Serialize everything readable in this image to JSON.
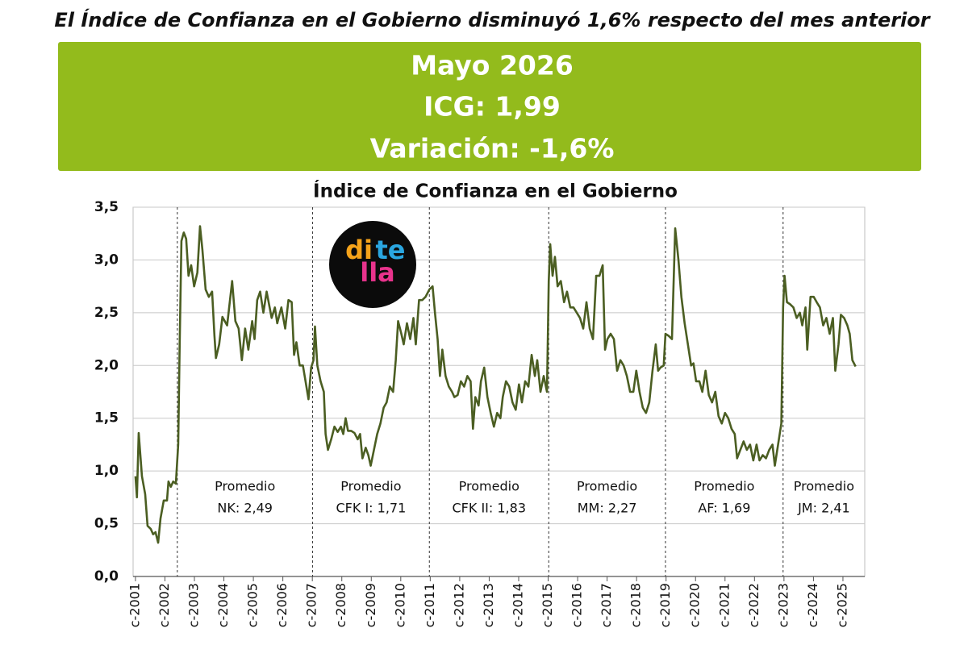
{
  "headline": "El Índice de Confianza en el Gobierno disminuyó 1,6% respecto del mes anterior",
  "banner": [
    "Mayo 2026",
    "ICG: 1,99",
    "Variación: -1,6%"
  ],
  "logo": [
    "di",
    "te",
    "lla"
  ],
  "chart_data": {
    "type": "line",
    "title": "Índice de Confianza en el Gobierno",
    "color": "#4b5e22",
    "grid": true,
    "xlim": [
      2000.92,
      2025.74
    ],
    "ylim": [
      0,
      3.5
    ],
    "yticks": [
      {
        "value": 0,
        "label": "0,0"
      },
      {
        "value": 0.5,
        "label": "0,5"
      },
      {
        "value": 1,
        "label": "1,0"
      },
      {
        "value": 1.5,
        "label": "1,5"
      },
      {
        "value": 2,
        "label": "2,0"
      },
      {
        "value": 2.5,
        "label": "2,5"
      },
      {
        "value": 3,
        "label": "3,0"
      },
      {
        "value": 3.5,
        "label": "3,5"
      }
    ],
    "xticks": [
      {
        "value": 2001,
        "label": "c-2001"
      },
      {
        "value": 2002,
        "label": "c-2002"
      },
      {
        "value": 2003,
        "label": "c-2003"
      },
      {
        "value": 2004,
        "label": "c-2004"
      },
      {
        "value": 2005,
        "label": "c-2005"
      },
      {
        "value": 2006,
        "label": "c-2006"
      },
      {
        "value": 2007,
        "label": "c-2007"
      },
      {
        "value": 2008,
        "label": "c-2008"
      },
      {
        "value": 2009,
        "label": "c-2009"
      },
      {
        "value": 2010,
        "label": "c-2010"
      },
      {
        "value": 2011,
        "label": "c-2011"
      },
      {
        "value": 2012,
        "label": "c-2012"
      },
      {
        "value": 2013,
        "label": "c-2013"
      },
      {
        "value": 2014,
        "label": "c-2014"
      },
      {
        "value": 2015,
        "label": "c-2015"
      },
      {
        "value": 2016,
        "label": "c-2016"
      },
      {
        "value": 2017,
        "label": "c-2017"
      },
      {
        "value": 2018,
        "label": "c-2018"
      },
      {
        "value": 2019,
        "label": "c-2019"
      },
      {
        "value": 2020,
        "label": "c-2020"
      },
      {
        "value": 2021,
        "label": "c-2021"
      },
      {
        "value": 2022,
        "label": "c-2022"
      },
      {
        "value": 2023,
        "label": "c-2023"
      },
      {
        "value": 2024,
        "label": "c-2024"
      },
      {
        "value": 2025,
        "label": "c-2025"
      }
    ],
    "period_separators": [
      2002.42,
      2007.01,
      2010.97,
      2015.02,
      2018.98,
      2022.97
    ],
    "annotations": [
      [
        "Promedio",
        "NK: 2,49"
      ],
      [
        "Promedio",
        "CFK I: 1,71"
      ],
      [
        "Promedio",
        "CFK II: 1,83"
      ],
      [
        "Promedio",
        "MM: 2,27"
      ],
      [
        "Promedio",
        "AF: 1,69"
      ],
      [
        "Promedio",
        "JM: 2,41"
      ]
    ],
    "x": [
      2001.0,
      2001.05,
      2001.11,
      2001.22,
      2001.33,
      2001.41,
      2001.52,
      2001.6,
      2001.68,
      2001.77,
      2001.85,
      2001.96,
      2002.07,
      2002.12,
      2002.2,
      2002.28,
      2002.37,
      2002.45,
      2002.5,
      2002.56,
      2002.64,
      2002.72,
      2002.8,
      2002.89,
      2002.99,
      2003.1,
      2003.19,
      2003.27,
      2003.38,
      2003.49,
      2003.6,
      2003.68,
      2003.73,
      2003.84,
      2003.95,
      2004.11,
      2004.28,
      2004.39,
      2004.5,
      2004.61,
      2004.72,
      2004.83,
      2004.96,
      2005.04,
      2005.13,
      2005.23,
      2005.34,
      2005.45,
      2005.62,
      2005.73,
      2005.81,
      2005.95,
      2006.08,
      2006.19,
      2006.3,
      2006.38,
      2006.46,
      2006.57,
      2006.68,
      2006.77,
      2006.87,
      2006.96,
      2007.04,
      2007.09,
      2007.17,
      2007.28,
      2007.39,
      2007.45,
      2007.53,
      2007.64,
      2007.75,
      2007.86,
      2007.97,
      2008.05,
      2008.13,
      2008.21,
      2008.32,
      2008.43,
      2008.54,
      2008.62,
      2008.7,
      2008.81,
      2008.9,
      2008.98,
      2009.09,
      2009.2,
      2009.31,
      2009.42,
      2009.52,
      2009.63,
      2009.74,
      2009.83,
      2009.91,
      2010.02,
      2010.1,
      2010.21,
      2010.32,
      2010.43,
      2010.51,
      2010.62,
      2010.73,
      2010.84,
      2010.97,
      2011.08,
      2011.16,
      2011.25,
      2011.33,
      2011.41,
      2011.52,
      2011.63,
      2011.74,
      2011.82,
      2011.93,
      2012.04,
      2012.15,
      2012.26,
      2012.37,
      2012.45,
      2012.53,
      2012.64,
      2012.72,
      2012.83,
      2012.94,
      2013.05,
      2013.16,
      2013.27,
      2013.38,
      2013.46,
      2013.57,
      2013.68,
      2013.79,
      2013.9,
      2014.01,
      2014.11,
      2014.22,
      2014.33,
      2014.44,
      2014.55,
      2014.63,
      2014.74,
      2014.85,
      2014.96,
      2015.02,
      2015.07,
      2015.15,
      2015.23,
      2015.32,
      2015.43,
      2015.54,
      2015.64,
      2015.75,
      2015.86,
      2015.97,
      2016.08,
      2016.19,
      2016.3,
      2016.41,
      2016.52,
      2016.63,
      2016.74,
      2016.85,
      2016.93,
      2017.01,
      2017.12,
      2017.23,
      2017.34,
      2017.45,
      2017.56,
      2017.67,
      2017.78,
      2017.89,
      2017.99,
      2018.1,
      2018.21,
      2018.32,
      2018.43,
      2018.54,
      2018.65,
      2018.73,
      2018.81,
      2018.92,
      2018.98,
      2019.09,
      2019.2,
      2019.31,
      2019.42,
      2019.52,
      2019.63,
      2019.74,
      2019.85,
      2019.93,
      2020.02,
      2020.13,
      2020.23,
      2020.34,
      2020.45,
      2020.56,
      2020.67,
      2020.78,
      2020.89,
      2021.0,
      2021.11,
      2021.22,
      2021.33,
      2021.41,
      2021.52,
      2021.63,
      2021.74,
      2021.85,
      2021.96,
      2022.07,
      2022.17,
      2022.28,
      2022.39,
      2022.5,
      2022.61,
      2022.69,
      2022.8,
      2022.91,
      2022.97,
      2023.02,
      2023.1,
      2023.21,
      2023.32,
      2023.43,
      2023.54,
      2023.62,
      2023.73,
      2023.79,
      2023.9,
      2024.01,
      2024.11,
      2024.22,
      2024.33,
      2024.44,
      2024.55,
      2024.66,
      2024.74,
      2024.85,
      2024.93,
      2025.04,
      2025.15,
      2025.23,
      2025.32,
      2025.43
    ],
    "values": [
      0.95,
      0.75,
      1.36,
      0.95,
      0.78,
      0.48,
      0.45,
      0.4,
      0.42,
      0.32,
      0.55,
      0.72,
      0.72,
      0.9,
      0.85,
      0.9,
      0.88,
      1.25,
      2.2,
      3.18,
      3.26,
      3.2,
      2.85,
      2.95,
      2.75,
      2.88,
      3.32,
      3.1,
      2.72,
      2.65,
      2.7,
      2.28,
      2.07,
      2.2,
      2.46,
      2.38,
      2.8,
      2.42,
      2.35,
      2.05,
      2.35,
      2.15,
      2.42,
      2.25,
      2.62,
      2.7,
      2.5,
      2.7,
      2.45,
      2.55,
      2.4,
      2.55,
      2.35,
      2.62,
      2.6,
      2.1,
      2.22,
      2.0,
      2.0,
      1.85,
      1.68,
      1.98,
      2.05,
      2.37,
      2.0,
      1.85,
      1.75,
      1.35,
      1.2,
      1.3,
      1.42,
      1.37,
      1.42,
      1.35,
      1.5,
      1.38,
      1.38,
      1.36,
      1.3,
      1.35,
      1.12,
      1.22,
      1.15,
      1.05,
      1.2,
      1.35,
      1.45,
      1.6,
      1.65,
      1.8,
      1.75,
      2.05,
      2.42,
      2.3,
      2.2,
      2.4,
      2.25,
      2.45,
      2.2,
      2.62,
      2.62,
      2.65,
      2.72,
      2.75,
      2.5,
      2.25,
      1.9,
      2.15,
      1.9,
      1.8,
      1.75,
      1.7,
      1.72,
      1.85,
      1.8,
      1.9,
      1.85,
      1.4,
      1.7,
      1.62,
      1.85,
      1.98,
      1.7,
      1.55,
      1.42,
      1.55,
      1.5,
      1.7,
      1.85,
      1.8,
      1.65,
      1.58,
      1.82,
      1.65,
      1.85,
      1.8,
      2.1,
      1.9,
      2.05,
      1.75,
      1.9,
      1.75,
      2.8,
      3.15,
      2.85,
      3.03,
      2.75,
      2.8,
      2.6,
      2.7,
      2.55,
      2.55,
      2.5,
      2.45,
      2.35,
      2.6,
      2.35,
      2.25,
      2.85,
      2.85,
      2.95,
      2.15,
      2.25,
      2.3,
      2.25,
      1.95,
      2.05,
      2.0,
      1.9,
      1.75,
      1.75,
      1.95,
      1.75,
      1.6,
      1.55,
      1.65,
      1.95,
      2.2,
      1.95,
      1.98,
      2.0,
      2.3,
      2.28,
      2.25,
      3.3,
      3.0,
      2.65,
      2.4,
      2.2,
      2.0,
      2.02,
      1.85,
      1.85,
      1.75,
      1.95,
      1.72,
      1.65,
      1.75,
      1.52,
      1.45,
      1.55,
      1.5,
      1.4,
      1.35,
      1.12,
      1.2,
      1.28,
      1.2,
      1.25,
      1.1,
      1.25,
      1.1,
      1.15,
      1.12,
      1.2,
      1.25,
      1.05,
      1.25,
      1.45,
      2.55,
      2.85,
      2.6,
      2.58,
      2.55,
      2.45,
      2.5,
      2.38,
      2.55,
      2.15,
      2.65,
      2.65,
      2.6,
      2.55,
      2.38,
      2.45,
      2.3,
      2.45,
      1.95,
      2.2,
      2.48,
      2.45,
      2.38,
      2.3,
      2.05,
      1.99
    ]
  }
}
